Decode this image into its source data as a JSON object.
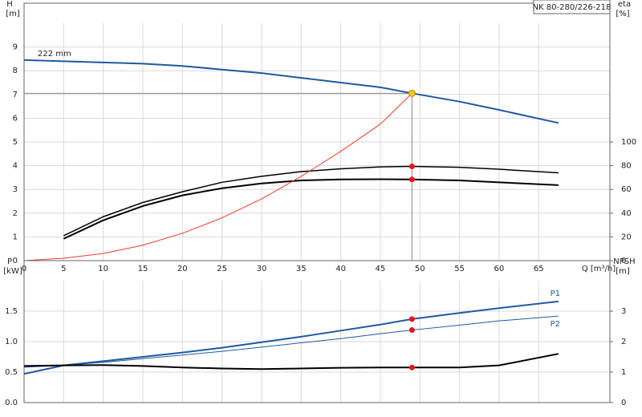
{
  "chart_data": [
    {
      "type": "line",
      "title": "NK 80-280/226-218",
      "ylabel": "H",
      "yunit": "[m]",
      "y2label": "eta",
      "y2unit": "[%]",
      "xlabel": "Q [m³/h]",
      "annotation": "222 mm",
      "x": [
        0,
        5,
        10,
        15,
        20,
        25,
        30,
        35,
        40,
        45,
        49,
        55,
        60,
        67.5
      ],
      "xlim": [
        0,
        74
      ],
      "xticks": [
        0,
        5,
        10,
        15,
        20,
        25,
        30,
        35,
        40,
        45,
        50,
        55,
        60,
        65
      ],
      "ylim": [
        0,
        10
      ],
      "yticks": [
        0,
        1,
        2,
        3,
        4,
        5,
        6,
        7,
        8,
        9
      ],
      "y2lim": [
        0,
        200
      ],
      "y2ticks": [
        0,
        20,
        40,
        60,
        80,
        100
      ],
      "grid": true,
      "marker_x": 49,
      "duty_point": {
        "x": 49,
        "y": 7.05,
        "color": "#f7c81e"
      },
      "series": [
        {
          "color": "#1f5aa0",
          "width": 2,
          "values": [
            8.45,
            8.4,
            8.35,
            8.3,
            8.2,
            8.05,
            7.9,
            7.7,
            7.5,
            7.3,
            7.05,
            6.7,
            6.35,
            5.8
          ]
        },
        {
          "color": "#000000",
          "width": 1.5,
          "axis": "y2",
          "markers": true,
          "values": [
            null,
            21,
            37,
            49,
            58,
            66,
            71,
            75,
            77.4,
            79,
            79.4,
            78.6,
            77,
            74
          ]
        },
        {
          "color": "#000000",
          "width": 2,
          "axis": "y2",
          "markers": true,
          "values": [
            null,
            18.4,
            34,
            46,
            55,
            61,
            65,
            67.6,
            68.4,
            68.6,
            68.4,
            67.6,
            66,
            63.6
          ]
        },
        {
          "color": "#f03a2a",
          "width": 1,
          "values": [
            0,
            0.1,
            0.3,
            0.65,
            1.15,
            1.8,
            2.6,
            3.55,
            4.6,
            5.75,
            7.05,
            null,
            null,
            null
          ]
        }
      ]
    },
    {
      "type": "line",
      "ylabel": "P",
      "yunit": "[kW]",
      "y2label": "NPSH",
      "y2unit": "[m]",
      "x": [
        0,
        5,
        10,
        15,
        20,
        25,
        30,
        35,
        40,
        45,
        49,
        55,
        60,
        67.5
      ],
      "xlim": [
        0,
        74
      ],
      "xticks": [
        0,
        5,
        10,
        15,
        20,
        25,
        30,
        35,
        40,
        45,
        50,
        55,
        60,
        65
      ],
      "ylim": [
        0,
        2
      ],
      "yticks": [
        {
          "value": 0,
          "label": "0.0"
        },
        0.5,
        {
          "value": 1,
          "label": "1.0"
        },
        1.5
      ],
      "y2lim": [
        0,
        4
      ],
      "y2ticks": [
        0,
        1,
        2,
        3
      ],
      "grid": true,
      "marker_x": 49,
      "series": [
        {
          "name": "P1",
          "color": "#1f5aa0",
          "width": 2,
          "markers": true,
          "values": [
            0.47,
            0.61,
            0.68,
            0.75,
            0.82,
            0.9,
            0.99,
            1.08,
            1.18,
            1.28,
            1.37,
            1.47,
            1.55,
            1.66
          ]
        },
        {
          "name": "P2",
          "color": "#1f5aa0",
          "width": 1,
          "markers": true,
          "values": [
            0.58,
            0.61,
            0.66,
            0.72,
            0.78,
            0.84,
            0.91,
            0.98,
            1.05,
            1.13,
            1.19,
            1.27,
            1.34,
            1.42
          ]
        },
        {
          "color": "#000000",
          "width": 2,
          "axis": "y2",
          "markers": true,
          "values": [
            1.2,
            1.22,
            1.23,
            1.2,
            1.15,
            1.12,
            1.1,
            1.12,
            1.14,
            1.15,
            1.15,
            1.15,
            1.22,
            1.6
          ]
        }
      ]
    }
  ]
}
